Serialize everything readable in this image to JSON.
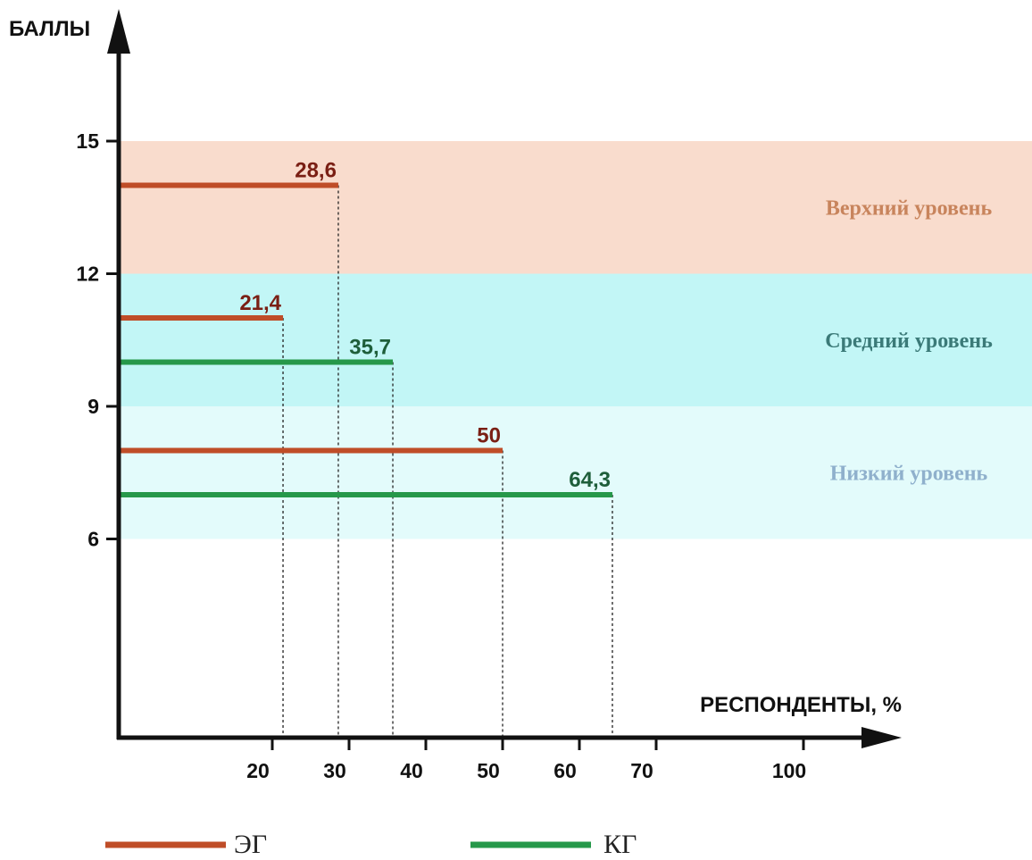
{
  "chart_data": {
    "type": "bar",
    "orientation": "horizontal",
    "y_title": "БАЛЛЫ",
    "x_title": "РЕСПОНДЕНТЫ, %",
    "y_ticks": [
      6,
      9,
      12,
      15
    ],
    "x_ticks": [
      20,
      30,
      40,
      50,
      60,
      70,
      100
    ],
    "bands": [
      {
        "name": "Верхний уровень",
        "y_from": 12,
        "y_to": 15,
        "color": "#f9dccd",
        "label_color": "#c8845c"
      },
      {
        "name": "Средний уровень",
        "y_from": 9,
        "y_to": 12,
        "color": "#c2f6f6",
        "label_color": "#3b7a78"
      },
      {
        "name": "Низкий уровень",
        "y_from": 6,
        "y_to": 9,
        "color": "#e3fbfb",
        "label_color": "#8fb0cc"
      }
    ],
    "series": [
      {
        "name": "ЭГ",
        "color": "#bf4d28",
        "label_color": "#7a1f14"
      },
      {
        "name": "КГ",
        "color": "#26984a",
        "label_color": "#1e5e3a"
      }
    ],
    "bars": [
      {
        "series": 0,
        "y": 14,
        "value": 28.6,
        "label": "28,6"
      },
      {
        "series": 0,
        "y": 11,
        "value": 21.4,
        "label": "21,4"
      },
      {
        "series": 1,
        "y": 10,
        "value": 35.7,
        "label": "35,7"
      },
      {
        "series": 0,
        "y": 8,
        "value": 50,
        "label": "50"
      },
      {
        "series": 1,
        "y": 7,
        "value": 64.3,
        "label": "64,3"
      }
    ],
    "legend_position": "bottom"
  }
}
